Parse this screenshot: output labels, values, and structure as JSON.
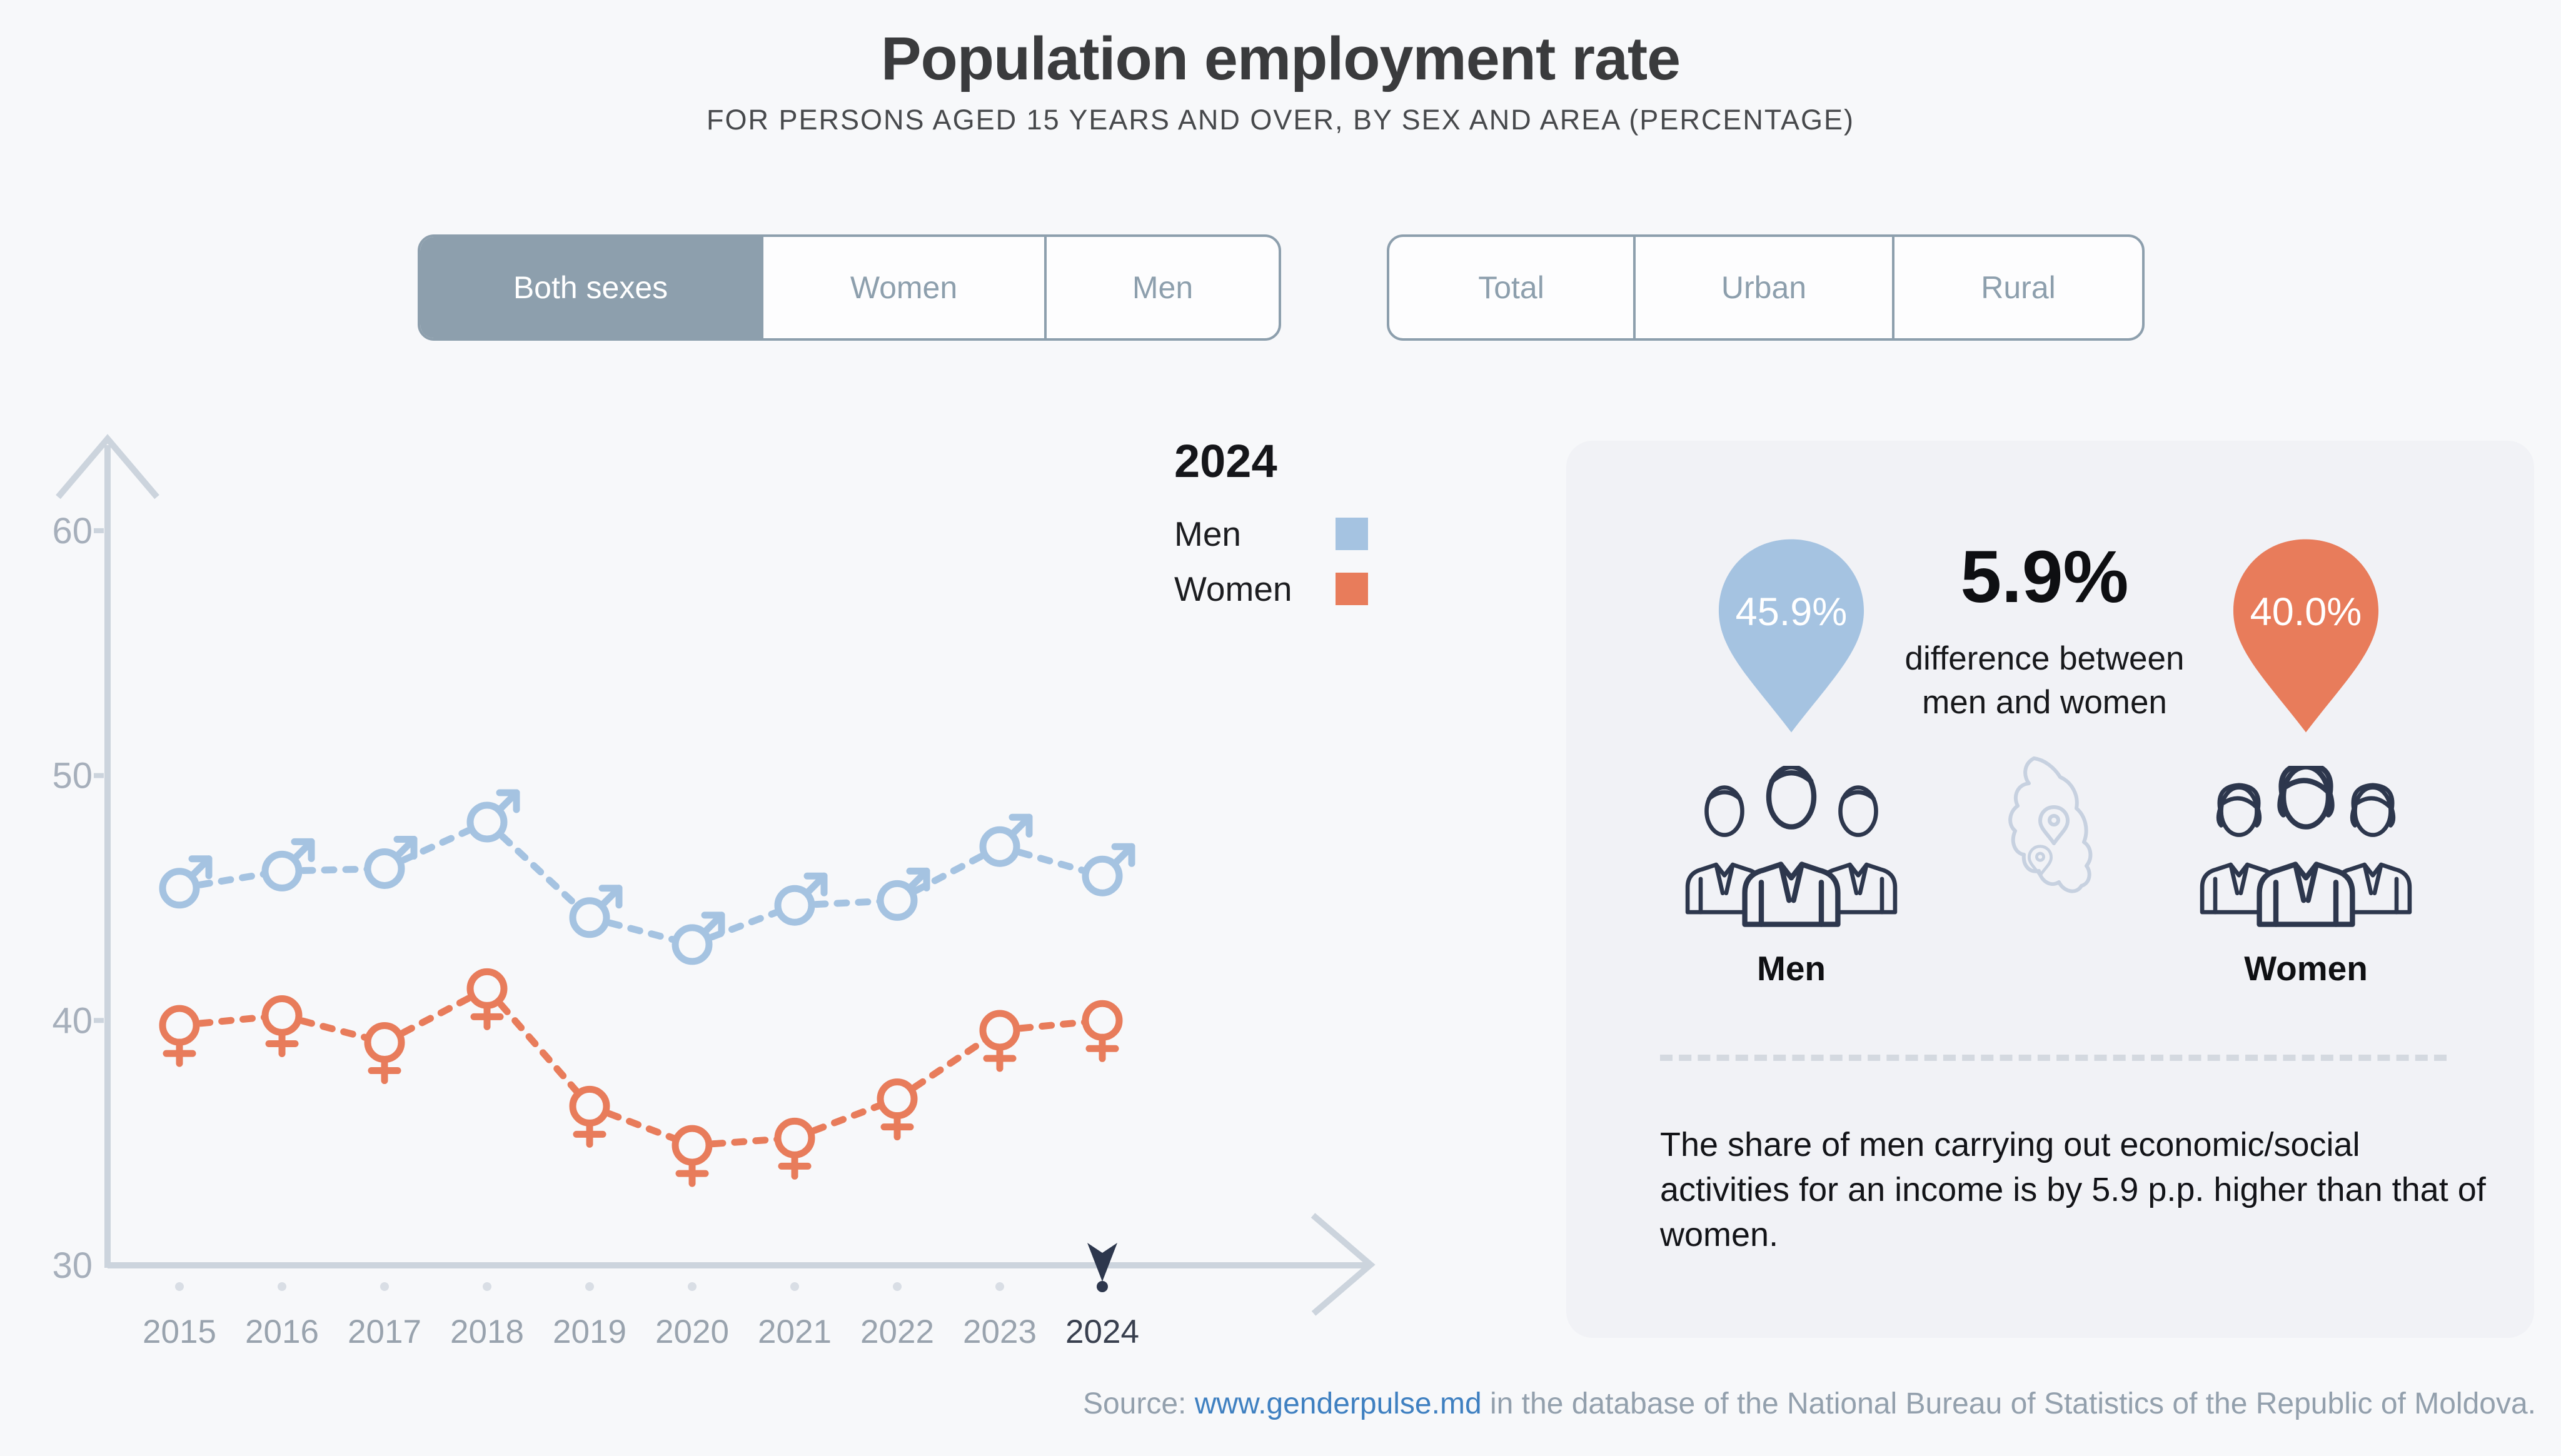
{
  "title": "Population employment rate",
  "subtitle": "FOR PERSONS AGED 15 YEARS AND OVER, BY SEX AND AREA (PERCENTAGE)",
  "toggles": {
    "sex": {
      "options": [
        "Both sexes",
        "Women",
        "Men"
      ],
      "selected": "Both sexes"
    },
    "area": {
      "options": [
        "Total",
        "Urban",
        "Rural"
      ],
      "selected": ""
    }
  },
  "legend": {
    "year": "2024",
    "items": [
      {
        "label": "Men",
        "color": "#a5c3e1"
      },
      {
        "label": "Women",
        "color": "#e87c5b"
      }
    ]
  },
  "chart_data": {
    "type": "line",
    "title": "Population employment rate",
    "x": [
      "2015",
      "2016",
      "2017",
      "2018",
      "2019",
      "2020",
      "2021",
      "2022",
      "2023",
      "2024"
    ],
    "series": [
      {
        "name": "Men",
        "marker": "male",
        "color": "#a5c3e1",
        "values": [
          45.4,
          46.1,
          46.2,
          48.1,
          44.2,
          43.1,
          44.7,
          44.9,
          47.1,
          45.9
        ]
      },
      {
        "name": "Women",
        "marker": "female",
        "color": "#e87c5b",
        "values": [
          39.8,
          40.2,
          39.1,
          41.3,
          36.5,
          34.9,
          35.2,
          36.8,
          39.6,
          40.0
        ]
      }
    ],
    "ylabel": "",
    "xlabel": "",
    "ylim": [
      30,
      62
    ],
    "yticks": [
      30,
      40,
      50,
      60
    ],
    "grid": false,
    "line_style": "dashed",
    "legend_position": "top-right",
    "highlight_year": "2024"
  },
  "panel": {
    "men_value": "45.9%",
    "women_value": "40.0%",
    "difference_value": "5.9%",
    "difference_caption_line1": "difference between",
    "difference_caption_line2": "men and women",
    "men_label": "Men",
    "women_label": "Women",
    "description": "The share of men carrying out economic/social activities for an income is by 5.9 p.p. higher than that of women."
  },
  "source": {
    "prefix": "Source: ",
    "link": "www.genderpulse.md",
    "suffix": " in the database of the National Bureau of Statistics of the Republic of Moldova."
  },
  "colors": {
    "page_bg": "#f7f8fa",
    "panel_bg": "#f1f2f6",
    "navy": "#2d374d",
    "blue": "#a5c3e1",
    "orange": "#e87c5b",
    "button": "#8d9fad",
    "link": "#3f80c1",
    "axis": "#ccd4dd",
    "tick_text": "#a6afbb",
    "year_text": "#99a3ae",
    "source_text": "#93a0ad"
  }
}
